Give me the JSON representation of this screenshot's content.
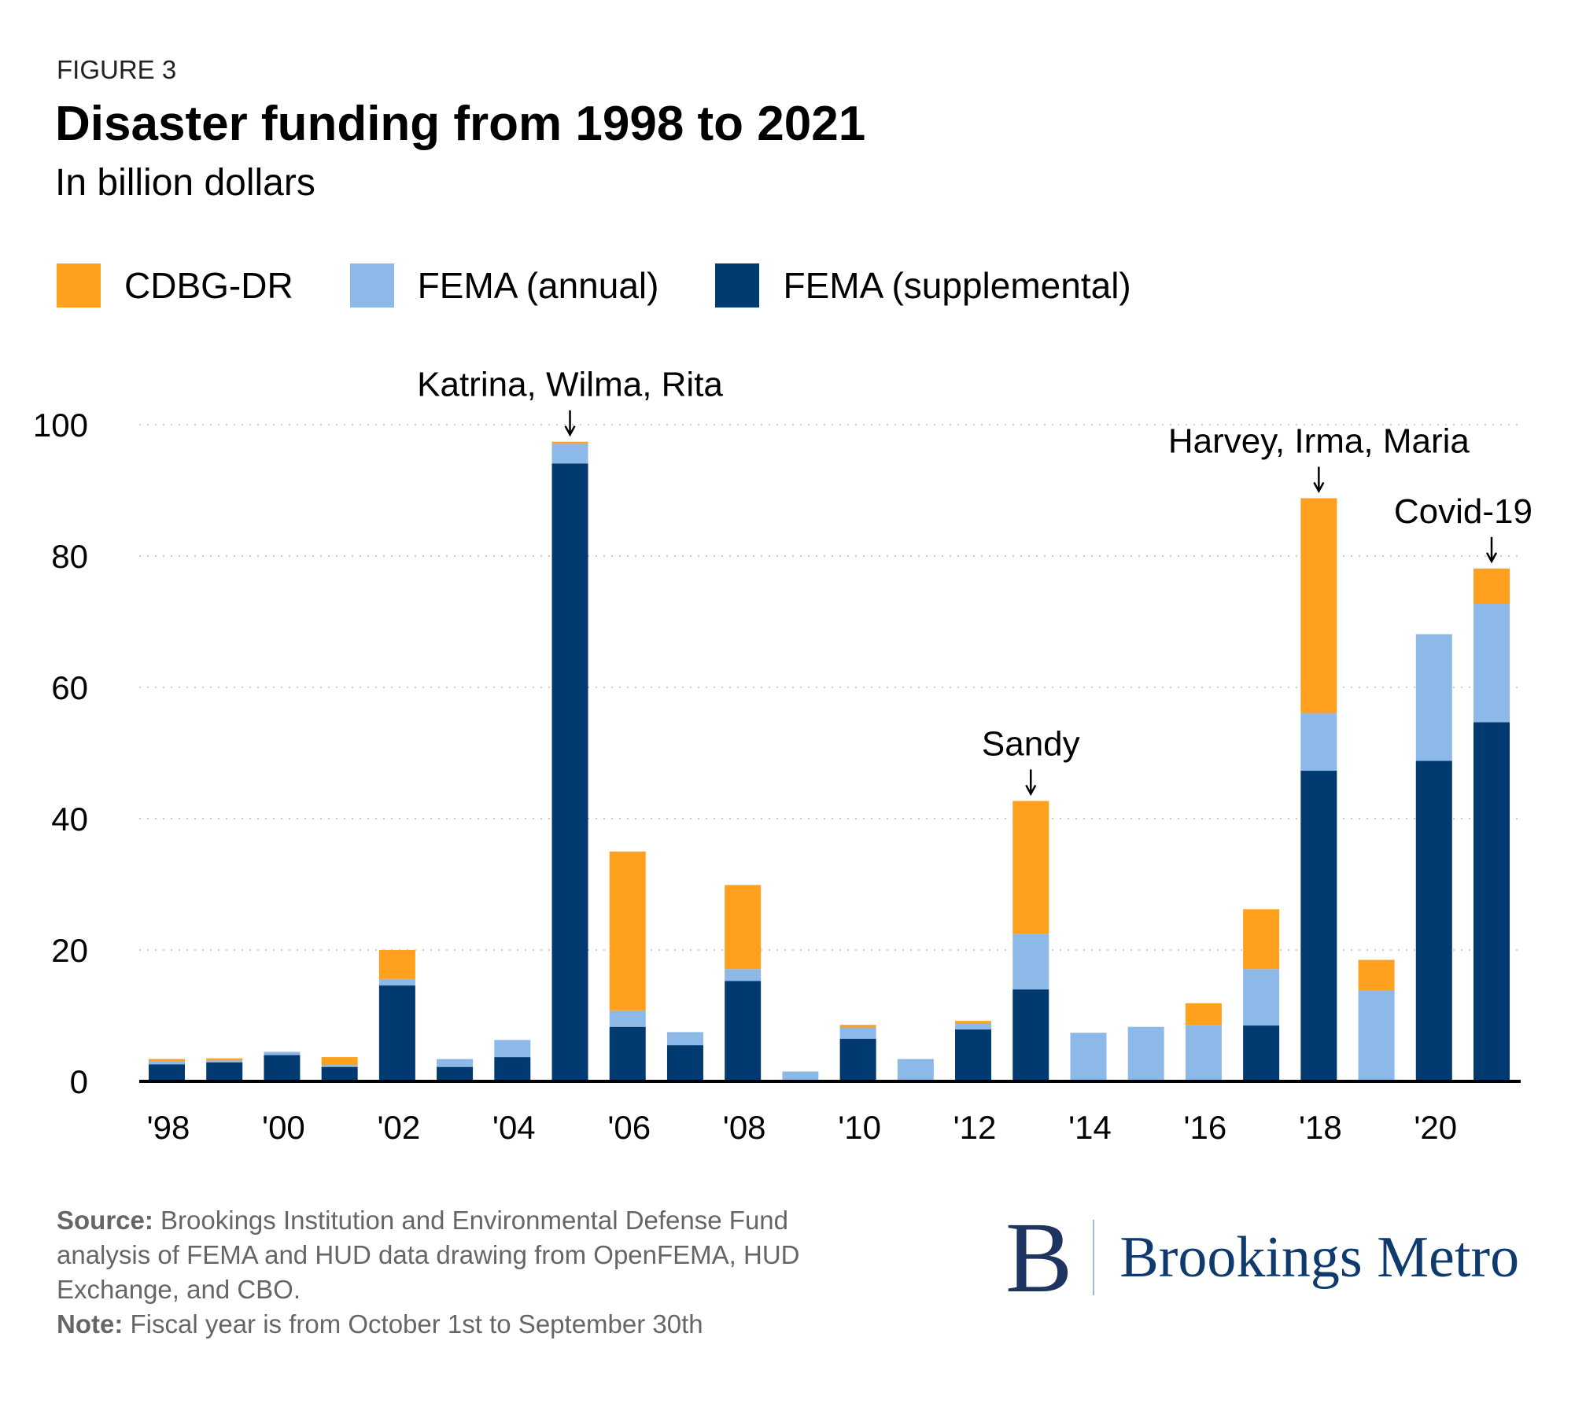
{
  "header": {
    "figure_label": "FIGURE 3",
    "title": "Disaster funding from 1998 to 2021",
    "subtitle": "In billion dollars"
  },
  "chart_data": {
    "type": "bar",
    "stacked": true,
    "categories": [
      "1998",
      "1999",
      "2000",
      "2001",
      "2002",
      "2003",
      "2004",
      "2005",
      "2006",
      "2007",
      "2008",
      "2009",
      "2010",
      "2011",
      "2012",
      "2013",
      "2014",
      "2015",
      "2016",
      "2017",
      "2018",
      "2019",
      "2020",
      "2021"
    ],
    "x_tick_labels": [
      "'98",
      "'00",
      "'02",
      "'04",
      "'06",
      "'08",
      "'10",
      "'12",
      "'14",
      "'16",
      "'18",
      "'20"
    ],
    "series": [
      {
        "name": "FEMA (supplemental)",
        "color": "#003a70",
        "values": [
          2.6,
          2.9,
          4.0,
          2.2,
          14.6,
          2.2,
          3.7,
          94.1,
          8.3,
          5.5,
          15.3,
          0,
          6.5,
          0,
          7.9,
          14.0,
          0,
          0,
          0,
          8.5,
          47.3,
          0,
          48.8,
          54.7
        ]
      },
      {
        "name": "FEMA (annual)",
        "color": "#8db9e9",
        "values": [
          0.5,
          0.3,
          0.5,
          0.3,
          1.0,
          1.2,
          2.6,
          3.0,
          2.5,
          2.0,
          1.8,
          1.5,
          1.7,
          3.4,
          0.9,
          8.5,
          7.4,
          8.3,
          8.6,
          8.6,
          8.8,
          13.9,
          19.3,
          18.0
        ]
      },
      {
        "name": "CDBG-DR",
        "color": "#ffa01e",
        "values": [
          0.3,
          0.3,
          0,
          1.2,
          4.4,
          0,
          0,
          0.3,
          24.2,
          0,
          12.8,
          0,
          0.4,
          0,
          0.4,
          20.2,
          0,
          0,
          3.3,
          9.1,
          32.7,
          4.6,
          0,
          5.4
        ]
      }
    ],
    "legend_order": [
      "CDBG-DR",
      "FEMA (annual)",
      "FEMA (supplemental)"
    ],
    "legend_position": "top-left",
    "ylim": [
      0,
      100
    ],
    "y_ticks": [
      0,
      20,
      40,
      60,
      80,
      100
    ],
    "grid": "horizontal dotted",
    "annotations": [
      {
        "text": "Katrina, Wilma, Rita",
        "category": "2005"
      },
      {
        "text": "Sandy",
        "category": "2013"
      },
      {
        "text": "Harvey, Irma, Maria",
        "category": "2018"
      },
      {
        "text": "Covid-19",
        "category": "2021"
      }
    ]
  },
  "footer": {
    "source_label": "Source:",
    "source_text": " Brookings Institution and Environmental Defense Fund analysis of FEMA and HUD data drawing from OpenFEMA, HUD Exchange, and CBO.",
    "note_label": "Note:",
    "note_text": " Fiscal year is from October 1st to September 30th",
    "logo_text": "Brookings Metro",
    "logo_letter": "B"
  }
}
